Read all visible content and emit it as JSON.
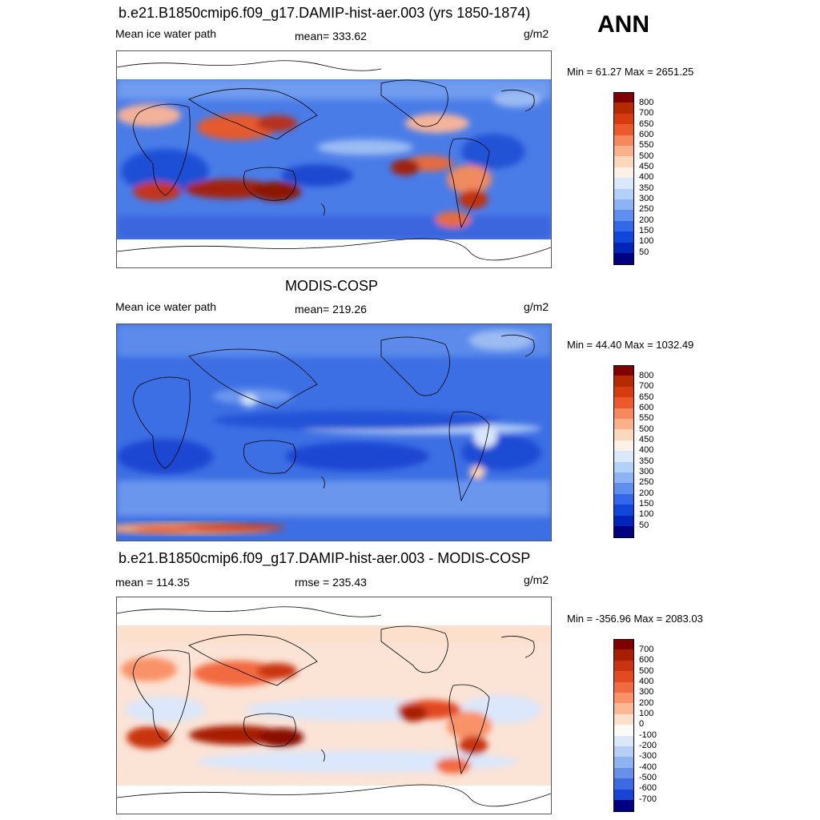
{
  "season": "ANN",
  "panels": [
    {
      "title": "b.e21.B1850cmip6.f09_g17.DAMIP-hist-aer.003 (yrs 1850-1874)",
      "left_label": "Mean ice water path",
      "center_label": "mean= 333.62",
      "units": "g/m2",
      "minmax": "Min =  61.27 Max = 2651.25",
      "colorbar": [
        "800",
        "700",
        "650",
        "600",
        "550",
        "500",
        "450",
        "400",
        "350",
        "300",
        "250",
        "200",
        "150",
        "100",
        "50"
      ],
      "colors": [
        "#800000",
        "#b52a00",
        "#d63c0f",
        "#ec5a2c",
        "#f7875c",
        "#fbb08a",
        "#fdd7bc",
        "#fdf0e6",
        "#d9e8fb",
        "#b2d0f8",
        "#8cb3f5",
        "#5e8eef",
        "#3369e8",
        "#1046d9",
        "#0025b8",
        "#000080"
      ]
    },
    {
      "title": "MODIS-COSP",
      "left_label": "Mean ice water path",
      "center_label": "mean= 219.26",
      "units": "g/m2",
      "minmax": "Min =  44.40 Max = 1032.49",
      "colorbar": [
        "800",
        "700",
        "650",
        "600",
        "550",
        "500",
        "450",
        "400",
        "350",
        "300",
        "250",
        "200",
        "150",
        "100",
        "50"
      ],
      "colors": [
        "#800000",
        "#b52a00",
        "#d63c0f",
        "#ec5a2c",
        "#f7875c",
        "#fbb08a",
        "#fdd7bc",
        "#fdf0e6",
        "#d9e8fb",
        "#b2d0f8",
        "#8cb3f5",
        "#5e8eef",
        "#3369e8",
        "#1046d9",
        "#0025b8",
        "#000080"
      ]
    },
    {
      "title": "b.e21.B1850cmip6.f09_g17.DAMIP-hist-aer.003 - MODIS-COSP",
      "left_label": "mean = 114.35",
      "center_label": "rmse = 235.43",
      "units": "g/m2",
      "minmax": "Min = -356.96 Max = 2083.03",
      "colorbar": [
        "700",
        "600",
        "500",
        "400",
        "300",
        "200",
        "100",
        "0",
        "-100",
        "-200",
        "-300",
        "-400",
        "-500",
        "-600",
        "-700"
      ],
      "colors": [
        "#800000",
        "#a81e00",
        "#c93410",
        "#e24a22",
        "#f26b40",
        "#f99268",
        "#fcb896",
        "#fde0cc",
        "#fffafa",
        "#dbe7fb",
        "#b7cff6",
        "#8fb2f1",
        "#6690ea",
        "#3d6ae1",
        "#1744d2",
        "#000080"
      ]
    }
  ]
}
